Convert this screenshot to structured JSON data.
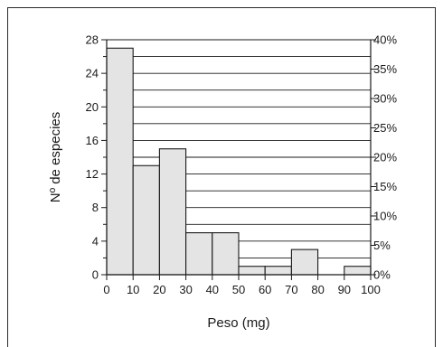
{
  "chart_data": {
    "type": "bar",
    "title": "",
    "xlabel": "Peso (mg)",
    "ylabel": "Nº de especies",
    "bins": [
      {
        "from": 0,
        "to": 10,
        "value": 27
      },
      {
        "from": 10,
        "to": 20,
        "value": 13
      },
      {
        "from": 20,
        "to": 30,
        "value": 15
      },
      {
        "from": 30,
        "to": 40,
        "value": 5
      },
      {
        "from": 40,
        "to": 50,
        "value": 5
      },
      {
        "from": 50,
        "to": 60,
        "value": 1
      },
      {
        "from": 60,
        "to": 70,
        "value": 1
      },
      {
        "from": 70,
        "to": 80,
        "value": 3
      },
      {
        "from": 80,
        "to": 90,
        "value": 0
      },
      {
        "from": 90,
        "to": 100,
        "value": 1
      }
    ],
    "xlim": [
      0,
      100
    ],
    "x_ticks": [
      "0",
      "10",
      "20",
      "30",
      "40",
      "50",
      "60",
      "70",
      "80",
      "90",
      "100"
    ],
    "ylim": [
      0,
      28
    ],
    "y_ticks": [
      "0",
      "4",
      "8",
      "12",
      "16",
      "20",
      "24",
      "28"
    ],
    "y2lim": [
      0,
      40
    ],
    "y2_ticks": [
      "0%",
      "5%",
      "10%",
      "15%",
      "20%",
      "25%",
      "30%",
      "35%",
      "40%"
    ],
    "grid": "horizontal",
    "colors": {
      "bar_fill": "#e4e4e4",
      "stroke": "#1a1a1a"
    }
  }
}
